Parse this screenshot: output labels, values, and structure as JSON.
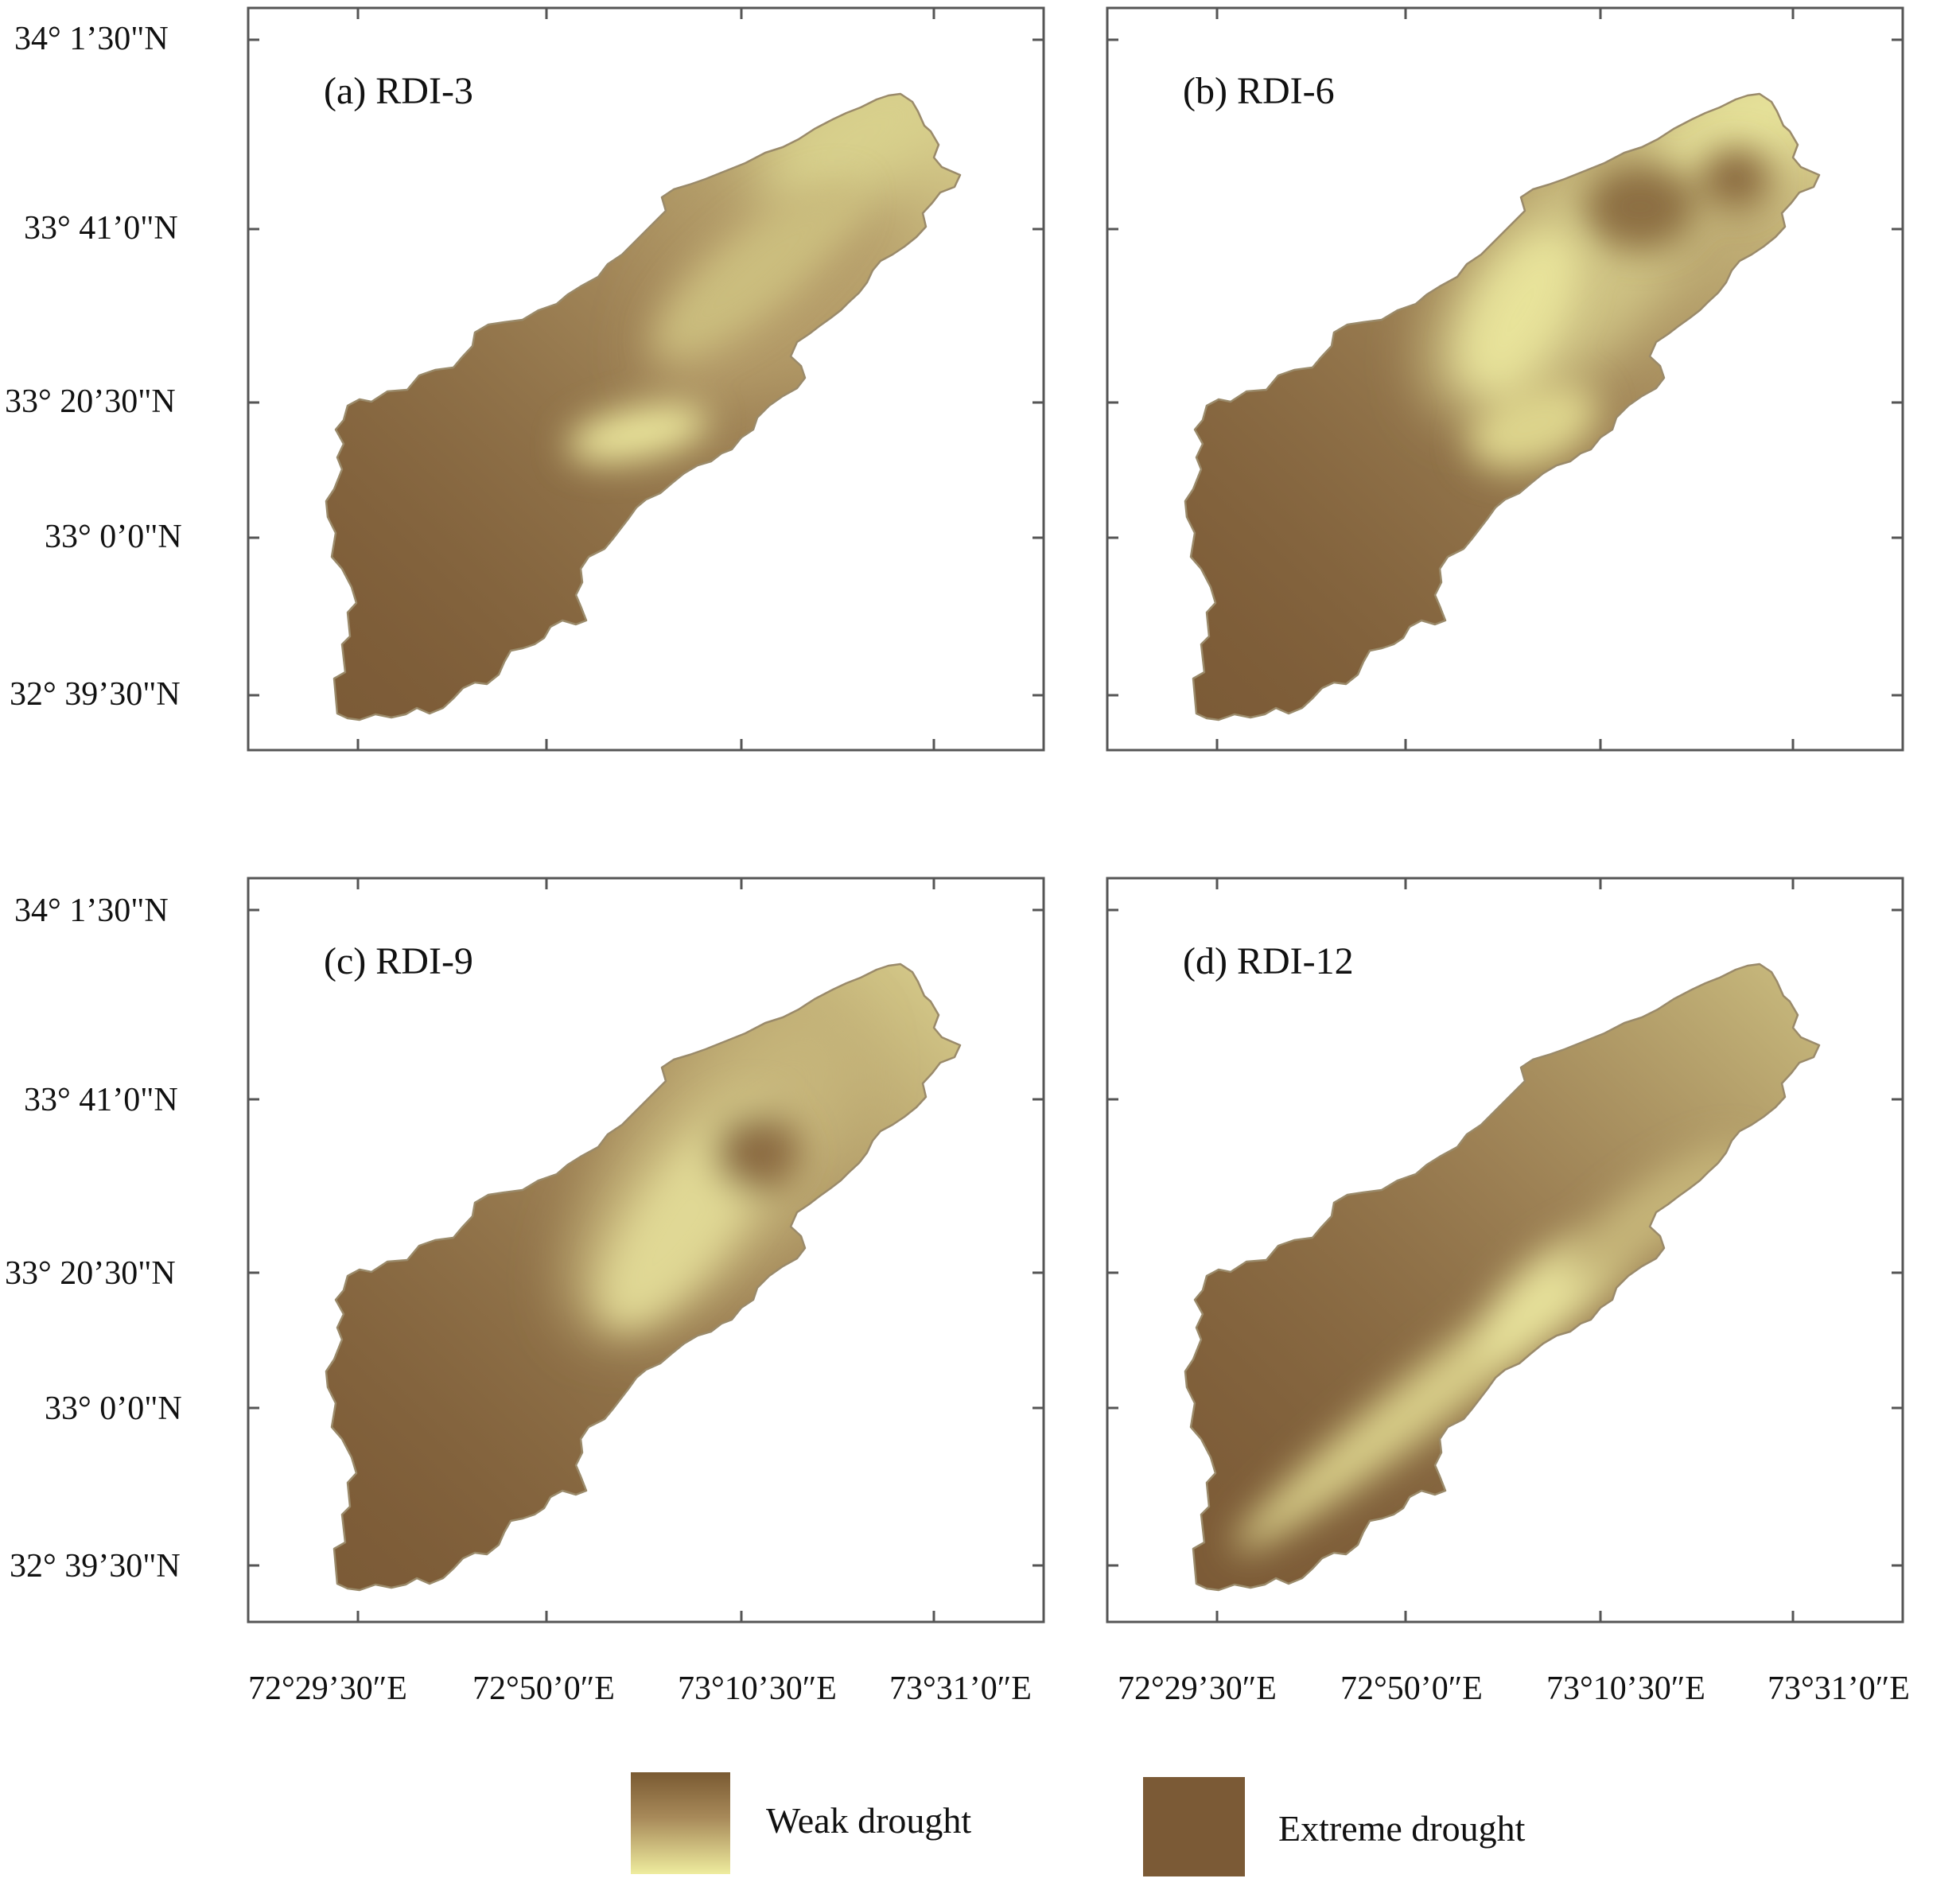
{
  "panels": [
    {
      "id": "a",
      "label": "(a) RDI-3"
    },
    {
      "id": "b",
      "label": "(b) RDI-6"
    },
    {
      "id": "c",
      "label": "(c) RDI-9"
    },
    {
      "id": "d",
      "label": "(d) RDI-12"
    }
  ],
  "latitude_ticks": [
    "34° 1’30\"N",
    "33° 41’0\"N",
    "33° 20’30\"N",
    "33° 0’0\"N",
    "32° 39’30\"N"
  ],
  "longitude_ticks": [
    "72°29’30″E",
    "72°50’0″E",
    "73°10’30″E",
    "73°31’0″E"
  ],
  "legend": {
    "weak": {
      "label": "Weak drought",
      "color_top": "#7a5a32",
      "color_bottom": "#ecea9a"
    },
    "extreme": {
      "label": "Extreme drought",
      "color": "#7b5a36"
    }
  },
  "colors": {
    "extreme": "#7b5a36",
    "mid": "#a88a5a",
    "weak": "#e8e49c"
  }
}
